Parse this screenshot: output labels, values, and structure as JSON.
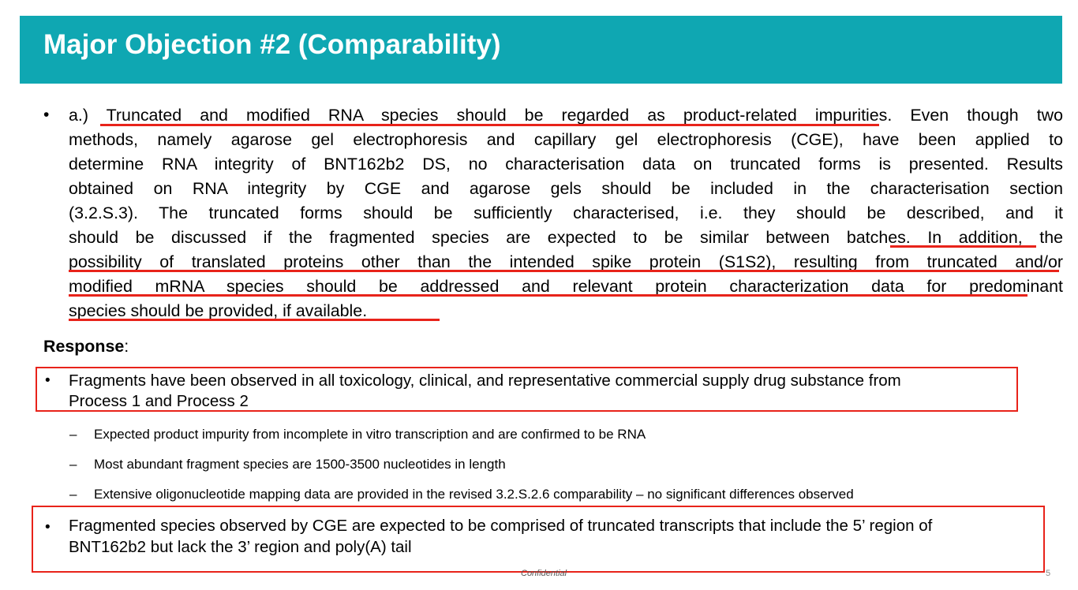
{
  "slide": {
    "title": "Major Objection #2 (Comparability)",
    "bullet_symbol": "•",
    "dash_symbol": "–",
    "objection_lines": [
      "a.) Truncated and modified RNA species should be regarded as product-related impurities. Even though two",
      "methods, namely agarose gel electrophoresis and capillary gel electrophoresis (CGE), have been applied to",
      "determine RNA integrity of BNT162b2 DS, no characterisation data on truncated forms is presented. Results",
      "obtained on RNA integrity by CGE and agarose gels should be included in the characterisation section",
      "(3.2.S.3). The truncated forms should be sufficiently characterised, i.e. they should be described, and it",
      "should be discussed if the fragmented species are expected to be similar between batches. In addition, the",
      "possibility of translated proteins other than the intended spike protein (S1S2), resulting from truncated and/or",
      "modified mRNA species should be addressed and relevant protein characterization data for predominant",
      "species should be provided, if available."
    ],
    "response_label": "Response",
    "response_colon": ":",
    "response_points": [
      {
        "lines": [
          "Fragments have been observed in all toxicology, clinical, and representative commercial supply drug substance from",
          "Process 1 and Process 2"
        ]
      },
      {
        "lines": [
          "Fragmented species observed by CGE are expected to be comprised of truncated transcripts that include the 5’ region of",
          "BNT162b2 but lack the 3’ region and poly(A) tail"
        ]
      }
    ],
    "sub_points": [
      "Expected product impurity from incomplete in vitro transcription and are confirmed to be RNA",
      "Most abundant fragment species are 1500-3500 nucleotides in length",
      "Extensive oligonucleotide mapping data are provided in the revised 3.2.S.2.6 comparability – no significant differences observed"
    ],
    "footer": "Confidential",
    "page_number": "5",
    "colors": {
      "title_bar": "#0fa7b2",
      "title_text": "#ffffff",
      "highlight_red": "#e8231a"
    }
  }
}
